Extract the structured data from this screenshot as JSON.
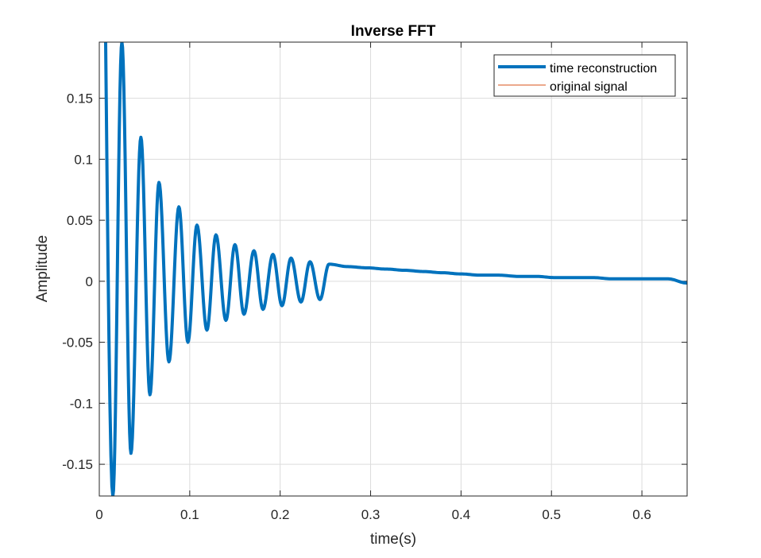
{
  "chart_data": {
    "type": "line",
    "title": "Inverse FFT",
    "xlabel": "time(s)",
    "ylabel": "Amplitude",
    "xlim": [
      0,
      0.65
    ],
    "ylim": [
      -0.176,
      0.196
    ],
    "x_ticks": [
      "0",
      "0.1",
      "0.2",
      "0.3",
      "0.4",
      "0.5",
      "0.6"
    ],
    "y_ticks": [
      "-0.15",
      "-0.1",
      "-0.05",
      "0",
      "0.05",
      "0.1",
      "0.15"
    ],
    "grid": true,
    "legend_position": "top-right",
    "series": [
      {
        "name": "time reconstruction",
        "color": "#0072BD",
        "model": "damped oscillation",
        "frequency_hz": 48,
        "peaks": [
          {
            "x": 0.025,
            "y": 0.196
          },
          {
            "x": 0.046,
            "y": 0.118
          },
          {
            "x": 0.066,
            "y": 0.081
          },
          {
            "x": 0.088,
            "y": 0.061
          },
          {
            "x": 0.108,
            "y": 0.046
          },
          {
            "x": 0.129,
            "y": 0.038
          },
          {
            "x": 0.15,
            "y": 0.03
          },
          {
            "x": 0.171,
            "y": 0.025
          },
          {
            "x": 0.192,
            "y": 0.022
          },
          {
            "x": 0.212,
            "y": 0.019
          },
          {
            "x": 0.233,
            "y": 0.016
          },
          {
            "x": 0.254,
            "y": 0.014
          },
          {
            "x": 0.275,
            "y": 0.012
          },
          {
            "x": 0.296,
            "y": 0.011
          },
          {
            "x": 0.317,
            "y": 0.01
          },
          {
            "x": 0.338,
            "y": 0.009
          },
          {
            "x": 0.358,
            "y": 0.008
          },
          {
            "x": 0.379,
            "y": 0.007
          },
          {
            "x": 0.4,
            "y": 0.006
          },
          {
            "x": 0.421,
            "y": 0.005
          },
          {
            "x": 0.442,
            "y": 0.005
          },
          {
            "x": 0.463,
            "y": 0.004
          },
          {
            "x": 0.483,
            "y": 0.004
          },
          {
            "x": 0.504,
            "y": 0.003
          },
          {
            "x": 0.525,
            "y": 0.003
          },
          {
            "x": 0.546,
            "y": 0.003
          },
          {
            "x": 0.567,
            "y": 0.002
          },
          {
            "x": 0.588,
            "y": 0.002
          },
          {
            "x": 0.608,
            "y": 0.002
          },
          {
            "x": 0.629,
            "y": 0.002
          }
        ],
        "troughs": [
          {
            "x": 0.015,
            "y": -0.176
          },
          {
            "x": 0.035,
            "y": -0.141
          },
          {
            "x": 0.056,
            "y": -0.093
          },
          {
            "x": 0.077,
            "y": -0.066
          },
          {
            "x": 0.098,
            "y": -0.05
          },
          {
            "x": 0.119,
            "y": -0.04
          },
          {
            "x": 0.14,
            "y": -0.032
          },
          {
            "x": 0.16,
            "y": -0.027
          },
          {
            "x": 0.181,
            "y": -0.023
          },
          {
            "x": 0.202,
            "y": -0.02
          },
          {
            "x": 0.223,
            "y": -0.017
          },
          {
            "x": 0.244,
            "y": -0.015
          }
        ]
      },
      {
        "name": "original signal",
        "color": "#D95319"
      }
    ]
  }
}
